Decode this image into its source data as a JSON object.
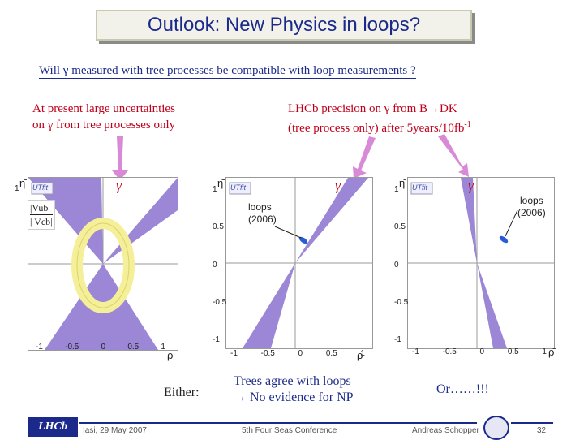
{
  "slide": {
    "title": "Outlook: New Physics in loops?",
    "question": "Will γ  measured with tree processes be compatible with loop measurements ?",
    "left_note_line1": "At present large uncertainties",
    "left_note_line2": "on γ from tree processes only",
    "right_note_line1": "LHCb precision on γ from B→DK",
    "right_note_line2": "(tree process only) after 5years/10fb",
    "right_note_sup": "-1",
    "gamma_symbol": "γ",
    "vub_num": "|Vub|",
    "vub_den": "| Vcb|",
    "loops_label_line1": "loops",
    "loops_label_line2": "(2006)",
    "either_label": "Either:",
    "trees_line1": "Trees agree with loops",
    "trees_line2": "→ No evidence for NP",
    "or_label": "Or……!!!",
    "axis_y_label": "η̄",
    "axis_x_label": "ρ̄",
    "ticks_y": [
      "1",
      "0.5",
      "0",
      "-0.5",
      "-1"
    ],
    "ticks_x": [
      "-1",
      "-0.5",
      "0",
      "0.5",
      "1"
    ],
    "utfit_badge": "UTfit"
  },
  "footer": {
    "place_date": "Iasi, 29 May 2007",
    "conference": "5th Four Seas Conference",
    "author": "Andreas Schopper",
    "page": "32",
    "logo_text": "LHCb"
  },
  "colors": {
    "title": "#1b2a8a",
    "red_text": "#c0001a",
    "band": "#9b87d6",
    "ring": "#f5ef9a",
    "arrow": "#d98ad6",
    "loop_blob": "#2a5bd7"
  }
}
